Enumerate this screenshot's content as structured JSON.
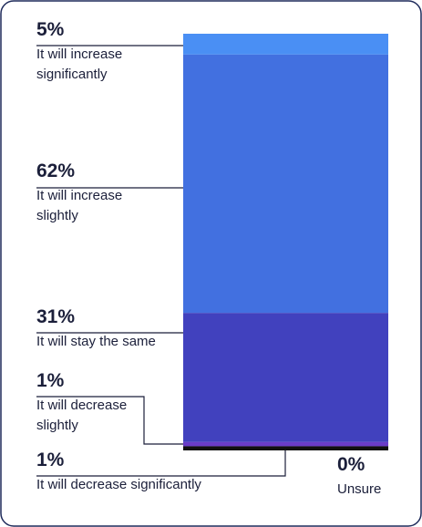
{
  "chart_data": {
    "type": "stacked-bar",
    "series": [
      {
        "name": "It will increase significantly",
        "color": "#4a8ff4",
        "values": [
          5
        ],
        "value_labels": [
          "5%"
        ]
      },
      {
        "name": "It will increase slightly",
        "color": "#4270e0",
        "values": [
          62
        ],
        "value_labels": [
          "62%"
        ]
      },
      {
        "name": "It will stay the same",
        "color": "#4141be",
        "values": [
          31
        ],
        "value_labels": [
          "31%"
        ]
      },
      {
        "name": "It will decrease slightly",
        "color": "#6a3cc8",
        "values": [
          1
        ],
        "value_labels": [
          "1%"
        ]
      },
      {
        "name": "It will decrease significantly",
        "color": "#111111",
        "values": [
          1
        ],
        "value_labels": [
          "1%"
        ]
      },
      {
        "name": "Unsure",
        "color": "#888888",
        "values": [
          0
        ],
        "value_labels": [
          "0%"
        ]
      }
    ]
  }
}
